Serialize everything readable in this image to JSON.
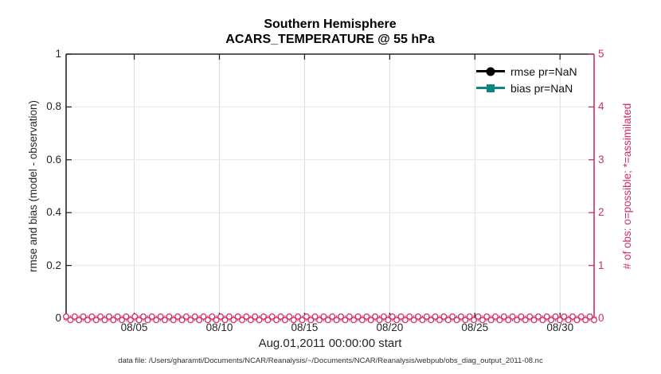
{
  "figure": {
    "title_line1": "Southern Hemisphere",
    "title_line2": "ACARS_TEMPERATURE @ 55 hPa",
    "xlabel": "Aug.01,2011 00:00:00 start",
    "caption": "data file: /Users/gharamti/Documents/NCAR/Reanalysis/~/Documents/NCAR/Reanalysis/webpub/obs_diag_output_2011-08.nc"
  },
  "left_axis": {
    "label": "rmse and bias (model - observation)",
    "tick_labels": [
      "0",
      "0.2",
      "0.4",
      "0.6",
      "0.8",
      "1"
    ],
    "tick_values": [
      0,
      0.2,
      0.4,
      0.6,
      0.8,
      1
    ],
    "lim": [
      0,
      1
    ],
    "color": "#262626"
  },
  "right_axis": {
    "label": "# of obs: o=possible; *=assimilated",
    "tick_labels": [
      "0",
      "1",
      "2",
      "3",
      "4",
      "5"
    ],
    "tick_values": [
      0,
      1,
      2,
      3,
      4,
      5
    ],
    "lim": [
      0,
      5
    ],
    "color": "#d02c66"
  },
  "x_axis": {
    "tick_labels": [
      "08/05",
      "08/10",
      "08/15",
      "08/20",
      "08/25",
      "08/30"
    ],
    "tick_days": [
      4,
      9,
      14,
      19,
      24,
      29
    ],
    "lim_days": [
      0,
      31
    ]
  },
  "legend": {
    "items": [
      {
        "label": "rmse pr=NaN",
        "color": "#000000",
        "marker": "circle"
      },
      {
        "label": "bias pr=NaN",
        "color": "#0e8583",
        "marker": "square"
      }
    ]
  },
  "colors": {
    "axis_black": "#262626",
    "obs_pink": "#d02c66",
    "bias_teal": "#0e8583",
    "grid_vertical": "#dcdcdc",
    "grid_horizontal": "#f8dfe9"
  },
  "chart_data": {
    "type": "line",
    "title": "Southern Hemisphere — ACARS_TEMPERATURE @ 55 hPa",
    "xlabel": "Aug.01,2011 00:00:00 start",
    "x_range": "Aug 01 2011 00:00 to Sep 01 2011 00:00 (31 days)",
    "x_tick_labels": [
      "08/05",
      "08/10",
      "08/15",
      "08/20",
      "08/25",
      "08/30"
    ],
    "left_ylabel": "rmse and bias (model - observation)",
    "left_ylim": [
      0,
      1
    ],
    "right_ylabel": "# of obs: o=possible; *=assimilated",
    "right_ylim": [
      0,
      5
    ],
    "grid": "on",
    "legend_position": "top-right inside axes, no box",
    "series": [
      {
        "name": "rmse pr=NaN",
        "axis": "left",
        "color": "#000000",
        "marker": "filled-circle",
        "values": "all NaN — no curve plotted"
      },
      {
        "name": "bias pr=NaN",
        "axis": "left",
        "color": "#0e8583",
        "marker": "filled-square",
        "values": "all NaN — no curve plotted"
      },
      {
        "name": "# of obs possible",
        "axis": "right",
        "color": "#d02c66",
        "marker": "o",
        "n_points": 124,
        "constant_value": 0
      },
      {
        "name": "# of obs assimilated",
        "axis": "right",
        "color": "#d02c66",
        "marker": "*",
        "n_points": 124,
        "constant_value": 0
      }
    ]
  }
}
